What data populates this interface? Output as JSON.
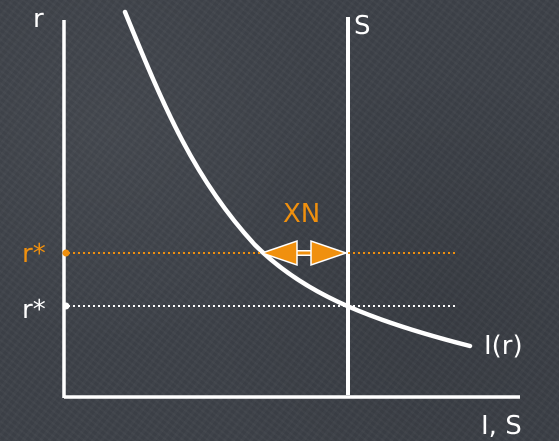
{
  "labels": {
    "y_axis": "r",
    "x_axis": "I, S",
    "savings_curve": "S",
    "investment_curve": "I(r)",
    "world_rate": "r*",
    "autarky_rate": "r*",
    "net_exports": "XN"
  },
  "colors": {
    "background": "#3d4148",
    "chalk": "#ffffff",
    "accent": "#f0900e"
  }
}
